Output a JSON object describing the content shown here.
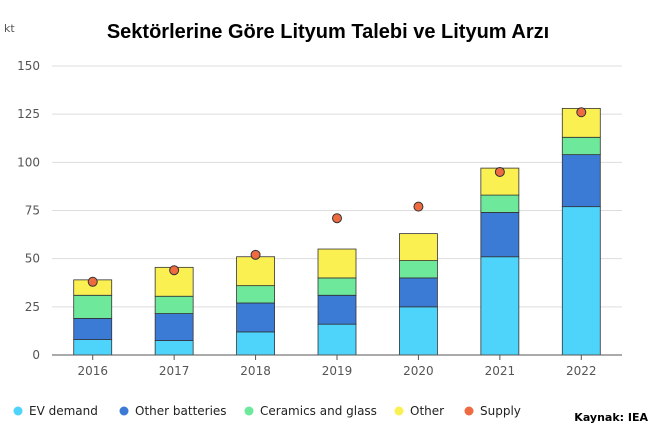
{
  "colors": {
    "ev": "#4ed3fb",
    "other_batteries": "#3b7bd6",
    "ceramics": "#6ee89b",
    "other": "#fbf052",
    "supply": "#ee6a41",
    "stroke": "#333333",
    "grid": "#dddddd",
    "axis": "#555555"
  },
  "source_label": "Kaynak: IEA",
  "chart_data": {
    "type": "bar",
    "stacked": true,
    "title": "Sektörlerine Göre Lityum Talebi ve Lityum Arzı",
    "ylabel": "kt",
    "xlabel": "",
    "ylim": [
      0,
      150
    ],
    "yticks": [
      0,
      25,
      50,
      75,
      100,
      125,
      150
    ],
    "grid": true,
    "legend_position": "bottom",
    "categories": [
      "2016",
      "2017",
      "2018",
      "2019",
      "2020",
      "2021",
      "2022"
    ],
    "series": [
      {
        "name": "EV demand",
        "color_key": "ev",
        "values": [
          8,
          7.5,
          12,
          16,
          25,
          51,
          77
        ]
      },
      {
        "name": "Other batteries",
        "color_key": "other_batteries",
        "values": [
          11,
          14,
          15,
          15,
          15,
          23,
          27
        ]
      },
      {
        "name": "Ceramics and glass",
        "color_key": "ceramics",
        "values": [
          12,
          9,
          9,
          9,
          9,
          9,
          9
        ]
      },
      {
        "name": "Other",
        "color_key": "other",
        "values": [
          8,
          15,
          15,
          15,
          14,
          14,
          15
        ]
      }
    ],
    "supply": {
      "name": "Supply",
      "color_key": "supply",
      "values": [
        38,
        44,
        52,
        71,
        77,
        95,
        126
      ]
    }
  }
}
